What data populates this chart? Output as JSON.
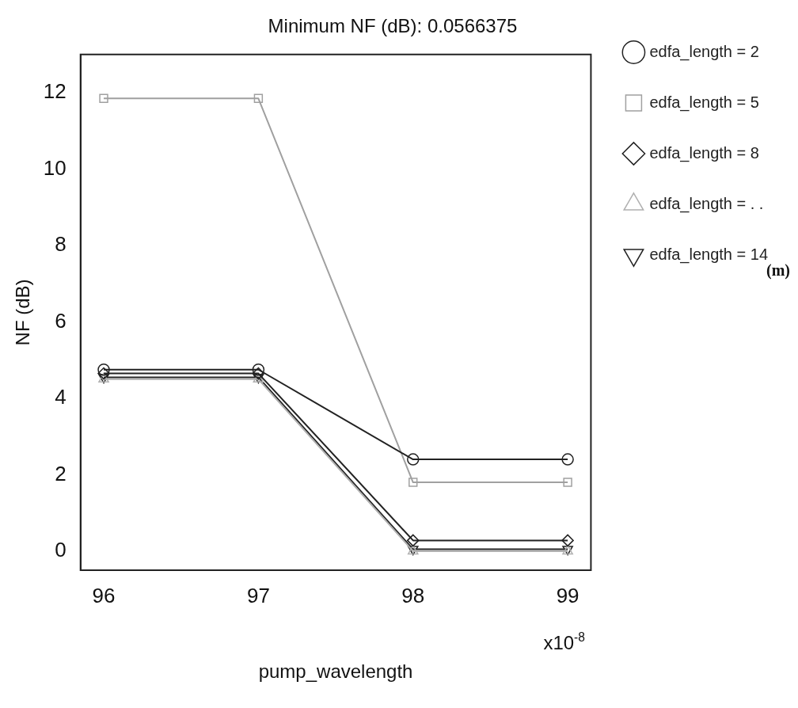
{
  "chart_data": {
    "type": "line",
    "title": "Minimum NF (dB): 0.0566375",
    "xlabel": "pump_wavelength",
    "ylabel": "NF (dB)",
    "annotations": [
      "x10$^{-8}$",
      "(m)"
    ],
    "x": [
      96,
      97,
      98,
      99
    ],
    "xlim": [
      95.85,
      99.15
    ],
    "xticks": [
      96,
      97,
      98,
      99
    ],
    "ylim": [
      -0.5,
      13
    ],
    "yticks": [
      0,
      2,
      4,
      6,
      8,
      10,
      12
    ],
    "grid": false,
    "legend": "right",
    "line_style": "solid",
    "series": [
      {
        "name": "edfa_length = 2",
        "color": "#222222",
        "marker": "circle",
        "values": [
          4.75,
          4.75,
          2.4,
          2.4
        ]
      },
      {
        "name": "edfa_length = 5",
        "color": "#a0a0a0",
        "marker": "square",
        "values": [
          11.85,
          11.85,
          1.8,
          1.8
        ]
      },
      {
        "name": "edfa_length = 8",
        "color": "#222222",
        "marker": "diamond",
        "values": [
          4.65,
          4.65,
          0.28,
          0.28
        ]
      },
      {
        "name": "edfa_length = . .",
        "color": "#b0b0b0",
        "marker": "triangle",
        "values": [
          4.5,
          4.5,
          0.0,
          0.0
        ]
      },
      {
        "name": "edfa_length = 14",
        "color": "#222222",
        "marker": "triangle-down",
        "values": [
          4.55,
          4.55,
          0.05,
          0.05
        ]
      }
    ]
  }
}
